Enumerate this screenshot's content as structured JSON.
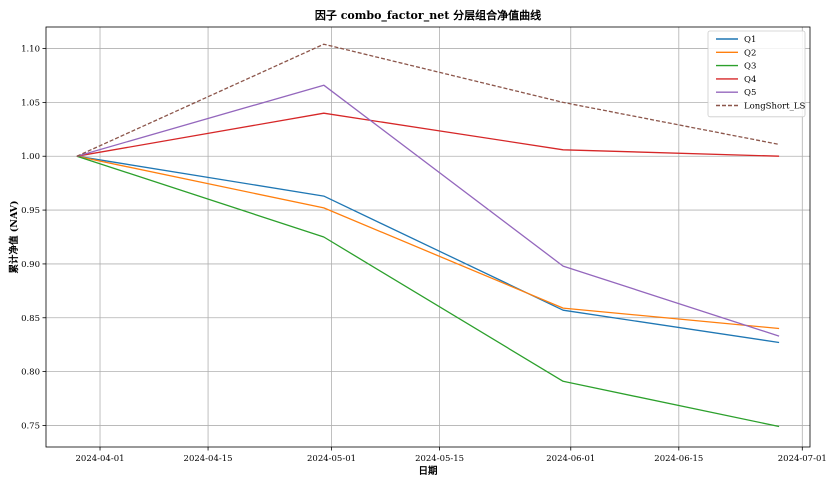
{
  "chart_data": {
    "type": "line",
    "title": "因子 combo_factor_net 分层组合净值曲线",
    "xlabel": "日期",
    "ylabel": "累计净值 (NAV)",
    "x": [
      "2024-03-29",
      "2024-04-30",
      "2024-05-31",
      "2024-06-28"
    ],
    "xlim": [
      "2024-03-25",
      "2024-07-02"
    ],
    "ylim": [
      0.73,
      1.12
    ],
    "x_ticks": [
      "2024-04-01",
      "2024-04-15",
      "2024-05-01",
      "2024-05-15",
      "2024-06-01",
      "2024-06-15",
      "2024-07-01"
    ],
    "x_tick_labels": [
      "2024-04-01",
      "2024-04-15",
      "2024-05-01",
      "2024-05-15",
      "2024-06-01",
      "2024-06-15",
      "2024-07-01"
    ],
    "y_ticks": [
      0.75,
      0.8,
      0.85,
      0.9,
      0.95,
      1.0,
      1.05,
      1.1
    ],
    "y_tick_labels": [
      "0.75",
      "0.80",
      "0.85",
      "0.90",
      "0.95",
      "1.00",
      "1.05",
      "1.10"
    ],
    "grid": true,
    "legend_position": "top-right",
    "series": [
      {
        "name": "Q1",
        "values": [
          1.0,
          0.963,
          0.857,
          0.827
        ],
        "color": "#1f77b4",
        "dashed": false
      },
      {
        "name": "Q2",
        "values": [
          1.0,
          0.952,
          0.859,
          0.84
        ],
        "color": "#ff7f0e",
        "dashed": false
      },
      {
        "name": "Q3",
        "values": [
          1.0,
          0.925,
          0.791,
          0.749
        ],
        "color": "#2ca02c",
        "dashed": false
      },
      {
        "name": "Q4",
        "values": [
          1.0,
          1.04,
          1.006,
          1.0
        ],
        "color": "#d62728",
        "dashed": false
      },
      {
        "name": "Q5",
        "values": [
          1.0,
          1.066,
          0.898,
          0.833
        ],
        "color": "#9467bd",
        "dashed": false
      },
      {
        "name": "LongShort_LS",
        "values": [
          1.0,
          1.104,
          1.05,
          1.011
        ],
        "color": "#8c564b",
        "dashed": true
      }
    ]
  }
}
